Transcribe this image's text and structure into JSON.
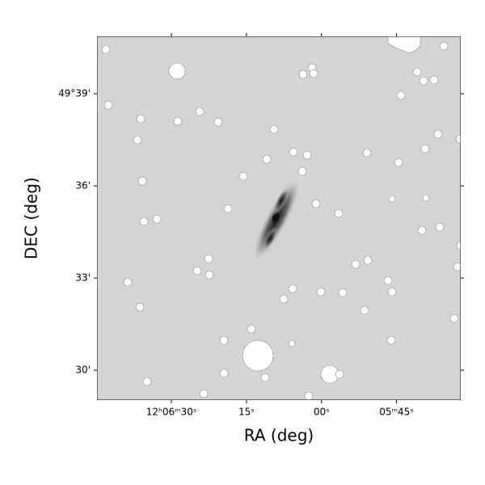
{
  "chart_data": {
    "type": "image",
    "xlabel": "RA (deg)",
    "ylabel": "DEC (deg)",
    "xlim": [
      181.687,
      181.384
    ],
    "ylim": [
      49.4838,
      49.6811
    ],
    "xticks": [
      {
        "value": 181.625,
        "label": "12ʰ06ᵐ30ˢ"
      },
      {
        "value": 181.5625,
        "label": "15ˢ"
      },
      {
        "value": 181.5,
        "label": "00ˢ"
      },
      {
        "value": 181.4375,
        "label": "05ᵐ45ˢ"
      }
    ],
    "yticks": [
      {
        "value": 49.65,
        "label": "49°39'"
      },
      {
        "value": 49.6,
        "label": "36'"
      },
      {
        "value": 49.55,
        "label": "33'"
      },
      {
        "value": 49.5,
        "label": "30'"
      }
    ],
    "colormap": "gray_r"
  }
}
